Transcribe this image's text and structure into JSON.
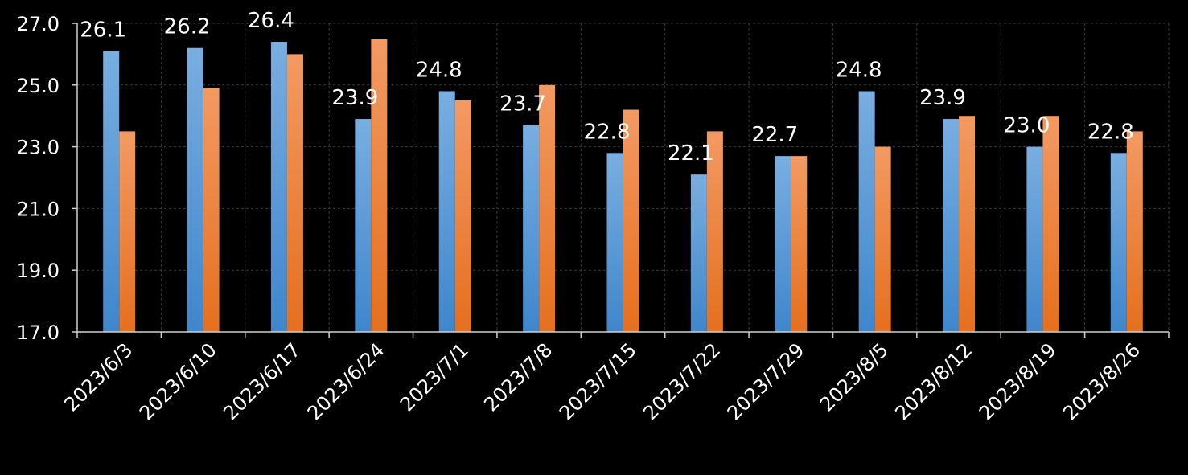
{
  "chart_data": {
    "type": "bar",
    "categories": [
      "2023/6/3",
      "2023/6/10",
      "2023/6/17",
      "2023/6/24",
      "2023/7/1",
      "2023/7/8",
      "2023/7/15",
      "2023/7/22",
      "2023/7/29",
      "2023/8/5",
      "2023/8/12",
      "2023/8/19",
      "2023/8/26"
    ],
    "series": [
      {
        "color": "#5b9bd5",
        "values": [
          26.1,
          26.2,
          26.4,
          23.9,
          24.8,
          23.7,
          22.8,
          22.1,
          22.7,
          24.8,
          23.9,
          23.0,
          22.8
        ],
        "labels": [
          "26.1",
          "26.2",
          "26.4",
          "23.9",
          "24.8",
          "23.7",
          "22.8",
          "22.1",
          "22.7",
          "24.8",
          "23.9",
          "23.0",
          "22.8"
        ]
      },
      {
        "color": "#ed7d31",
        "values": [
          23.5,
          24.9,
          26.0,
          26.5,
          24.5,
          25.0,
          24.2,
          23.5,
          22.7,
          23.0,
          24.0,
          24.0,
          23.5
        ]
      }
    ],
    "ylim": [
      17.0,
      27.0
    ],
    "yticks": [
      "17.0",
      "19.0",
      "21.0",
      "23.0",
      "25.0",
      "27.0"
    ],
    "grid": true,
    "legend": "none"
  }
}
